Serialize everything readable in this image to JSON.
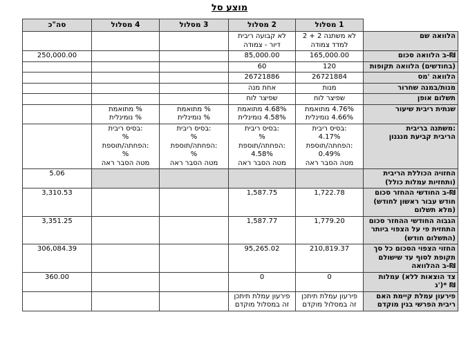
{
  "title": "סל מוצע",
  "colors": {
    "header_bg": "#d9d9d9",
    "label_bg": "#d9d9d9",
    "shaded_cell_bg": "#d9d9d9",
    "border": "#3c3c3c"
  },
  "table": {
    "column_headers": [
      "מסלול 1",
      "מסלול 2",
      "מסלול 3",
      "מסלול 4",
      "סה\"כ"
    ],
    "rows": [
      {
        "label": "שם הלוואה",
        "values": {
          "track1": "2 + 2 משתנה לא צמודה למדד",
          "track2": "ריבית קבועה לא צמודה - דיור",
          "track3": "",
          "track4": "",
          "total": ""
        }
      },
      {
        "label": "סכום הלוואה ב-₪",
        "values": {
          "track1": "165,000.00",
          "track2": "85,000.00",
          "track3": "",
          "track4": "",
          "total": "250,000.00"
        }
      },
      {
        "label": "תקופות הלוואה (בחודשים)",
        "values": {
          "track1": "120",
          "track2": "60",
          "track3": "",
          "track4": "",
          "total": ""
        }
      },
      {
        "label": "מס' הלוואה",
        "values": {
          "track1": "26721884",
          "track2": "26721886",
          "track3": "",
          "track4": "",
          "total": ""
        }
      },
      {
        "label": "שחרור במנה/מנות",
        "values": {
          "track1": "מנות",
          "track2": "מנה אחת",
          "track3": "",
          "track4": "",
          "total": ""
        }
      },
      {
        "label": "אופן תשלום",
        "values": {
          "track1": "לוח שפיצר",
          "track2": "לוח שפיצר",
          "track3": "",
          "track4": "",
          "total": ""
        }
      },
      {
        "label": "שיעור ריבית שנתית",
        "values": {
          "track1": "מתואמת 4.76%\nנומינלית 4.66%",
          "track2": "מתואמת 4.68%\nנומינלית 4.58%",
          "track3": "מתואמת %\nנומינלית %",
          "track4": "מתואמת %\nנומינלית %",
          "total": ""
        }
      },
      {
        "label": "בריבית משתנה:\nמנגנון קביעת הריבית",
        "values": {
          "track1": "ריבית בסיס:\n4.17%\nתוספת/הפחתה:\n0.49%\nראה הסבר מטה",
          "track2": "ריבית בסיס:\n%\nתוספת/הפחתה:\n4.58%\nראה הסבר מטה",
          "track3": "ריבית בסיס:\n%\nתוספת/הפחתה:\n%\nראה הסבר מטה",
          "track4": "ריבית בסיס:\n%\nתוספת/הפחתה:\n%\nראה הסבר מטה",
          "total": ""
        }
      },
      {
        "label": "הריבית הכוללת החזויה (כולל עמלות ותחזיות)",
        "shaded": true,
        "values": {
          "track1": "",
          "track2": "",
          "track3": "",
          "track4": "",
          "total": "5.06"
        }
      },
      {
        "label": "סכום ההחזר החודשי ב-₪ (לחודש ראשון עבור חודש תשלום מלא)",
        "values": {
          "track1": "1,722.78",
          "track2": "1,587.75",
          "track3": "",
          "track4": "",
          "total": "3,310.53"
        }
      },
      {
        "label": "סכום ההחזר החודשי הגבוה ביותר הצפוי על פי התחזית (חודש התשלום)",
        "values": {
          "track1": "1,779.20",
          "track2": "1,587.77",
          "track3": "",
          "track4": "",
          "total": "3,351.25"
        }
      },
      {
        "label": "סך כל הסכום הצפוי החזוי שישולם עד לסוף תקופת ההלוואה ב-₪",
        "values": {
          "track1": "210,819.37",
          "track2": "95,265.02",
          "track3": "",
          "track4": "",
          "total": "306,084.39"
        }
      },
      {
        "label": "עמלות (ללא הוצאות צד ג')* ₪",
        "values": {
          "track1": "0",
          "track2": "0",
          "track3": "",
          "track4": "",
          "total": "360.00"
        }
      },
      {
        "label": "האם קיימת עמלת פירעון מוקדם בגין הפרשי ריבית",
        "values": {
          "track1": "תיתכן עמלת פירעון מוקדם במסלול זה",
          "track2": "תיתכן עמלת פירעון מוקדם במסלול זה",
          "track3": "",
          "track4": "",
          "total": ""
        }
      }
    ]
  }
}
